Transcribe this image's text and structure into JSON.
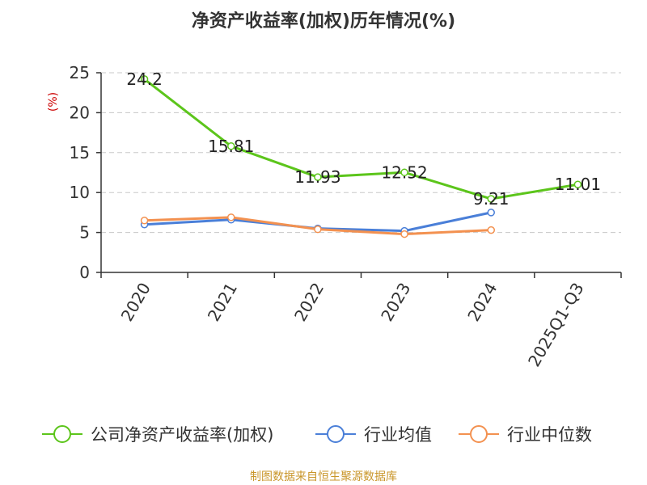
{
  "chart_data": {
    "type": "line",
    "title": "净资产收益率(加权)历年情况(%)",
    "ylabel": "(%)",
    "categories": [
      "2020",
      "2021",
      "2022",
      "2023",
      "2024",
      "2025Q1-Q3"
    ],
    "y_ticks": [
      "0",
      "5",
      "10",
      "15",
      "20",
      "25"
    ],
    "ylim": [
      0,
      25
    ],
    "grid": true,
    "legend_position": "bottom",
    "series": [
      {
        "name": "公司净资产收益率(加权)",
        "color": "#5cc51b",
        "values": [
          24.2,
          15.81,
          11.93,
          12.52,
          9.21,
          11.01
        ],
        "labels": [
          "24.2",
          "15.81",
          "11.93",
          "12.52",
          "9.21",
          "11.01"
        ]
      },
      {
        "name": "行业均值",
        "color": "#4a7fd8",
        "values": [
          6.0,
          6.6,
          5.5,
          5.2,
          7.5,
          null
        ]
      },
      {
        "name": "行业中位数",
        "color": "#f39150",
        "values": [
          6.5,
          6.9,
          5.4,
          4.8,
          5.3,
          null
        ]
      }
    ],
    "source": "制图数据来自恒生聚源数据库"
  }
}
